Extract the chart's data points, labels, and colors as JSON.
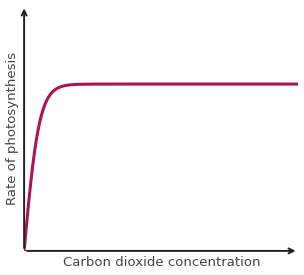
{
  "title": "",
  "xlabel": "Carbon dioxide concentration",
  "ylabel": "Rate of photosynthesis",
  "line_color": "#ad1457",
  "line_width": 2.2,
  "background_color": "#ffffff",
  "grid_color": "#c8d0e0",
  "grid_linestyle": "--",
  "axis_color": "#222222",
  "xlim": [
    0,
    10
  ],
  "ylim": [
    0,
    10
  ],
  "plateau_y": 6.8,
  "rise_start_x": 0.0,
  "rise_slope": 4.5,
  "plateau_x_start": 3.0,
  "xlabel_fontsize": 9.5,
  "ylabel_fontsize": 9.5
}
